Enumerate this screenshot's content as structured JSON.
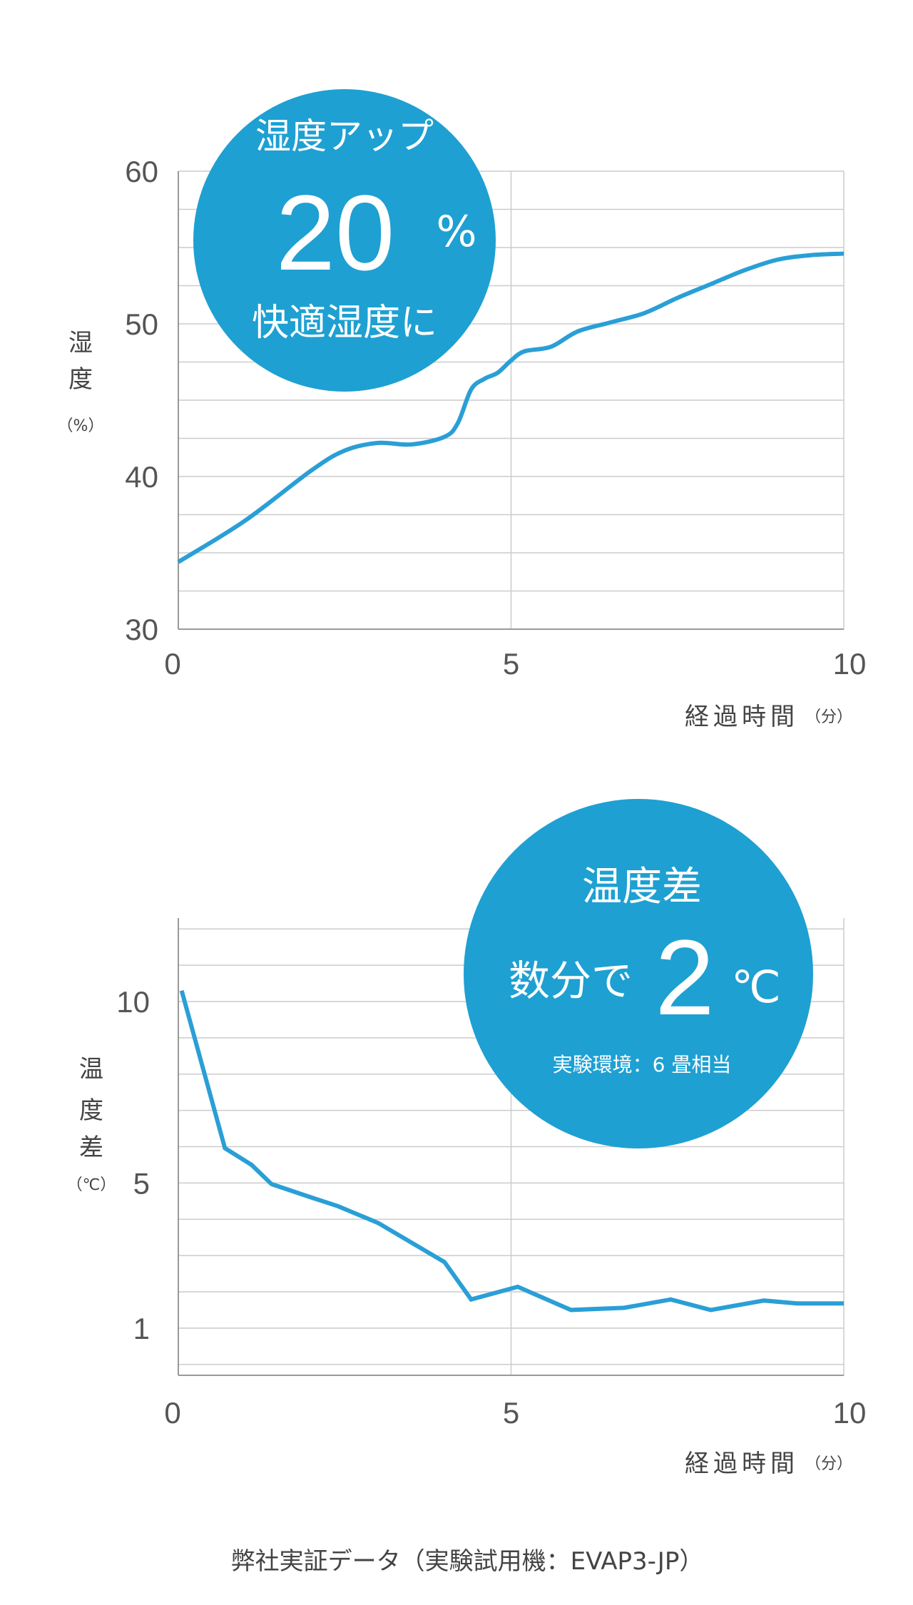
{
  "chart_data": [
    {
      "type": "line",
      "title": "",
      "xlabel": "経過時間",
      "xlabel_unit": "（分）",
      "ylabel": [
        "湿",
        "度"
      ],
      "ylabel_unit": "（%）",
      "xlim": [
        0,
        10
      ],
      "ylim": [
        30,
        60
      ],
      "grid": true,
      "xticks": [
        0,
        5,
        10
      ],
      "xtick_labels": [
        "0",
        "5",
        "10"
      ],
      "yticks": [
        30,
        40,
        50,
        60
      ],
      "ytick_labels": [
        "30",
        "40",
        "50",
        "60"
      ],
      "ygrid_step": 2.5,
      "color": "#2a9fd6",
      "series": [
        {
          "name": "湿度",
          "x": [
            0,
            1,
            2,
            2.5,
            3,
            3.5,
            4,
            4.2,
            4.4,
            4.6,
            4.8,
            5,
            5.2,
            5.6,
            6,
            6.5,
            7,
            7.5,
            8,
            8.5,
            9,
            9.5,
            10
          ],
          "y": [
            34.4,
            37.1,
            40.4,
            41.7,
            42.2,
            42.1,
            42.6,
            43.5,
            45.7,
            46.4,
            46.8,
            47.6,
            48.2,
            48.5,
            49.5,
            50.1,
            50.7,
            51.7,
            52.6,
            53.5,
            54.2,
            54.5,
            54.6
          ]
        }
      ],
      "callout": {
        "line1": "湿度アップ",
        "big": "20",
        "big_unit": "%",
        "line3": "快適湿度に"
      }
    },
    {
      "type": "line",
      "title": "",
      "xlabel": "経過時間",
      "xlabel_unit": "（分）",
      "ylabel": [
        "温",
        "度",
        "差"
      ],
      "ylabel_unit": "（℃）",
      "xlim": [
        0,
        10
      ],
      "ylim": [
        -0.3,
        12.3
      ],
      "grid": true,
      "xticks": [
        0,
        5,
        10
      ],
      "xtick_labels": [
        "0",
        "5",
        "10"
      ],
      "yticks": [
        1,
        5,
        10
      ],
      "ytick_labels": [
        "1",
        "5",
        "10"
      ],
      "ygrid_step": 1,
      "color": "#2a9fd6",
      "series": [
        {
          "name": "温度差",
          "x": [
            0.05,
            0.7,
            1.1,
            1.4,
            2,
            2.4,
            3,
            4,
            4.4,
            5.1,
            5.9,
            6.7,
            7.4,
            8,
            8.8,
            9.3,
            10
          ],
          "y": [
            10.3,
            5.96,
            5.5,
            4.97,
            4.6,
            4.36,
            3.9,
            2.82,
            1.79,
            2.14,
            1.5,
            1.56,
            1.79,
            1.5,
            1.76,
            1.68,
            1.68
          ]
        }
      ],
      "callout": {
        "line1": "温度差",
        "prefix": "数分で",
        "big": "2",
        "big_unit": "℃",
        "note": "実験環境：6 畳相当"
      }
    }
  ],
  "footer": "弊社実証データ（実験試用機：EVAP3-JP）",
  "colors": {
    "accent": "#1ea0d2",
    "line": "#2a9fd6",
    "grid": "#cccccc",
    "axis": "#999999"
  }
}
